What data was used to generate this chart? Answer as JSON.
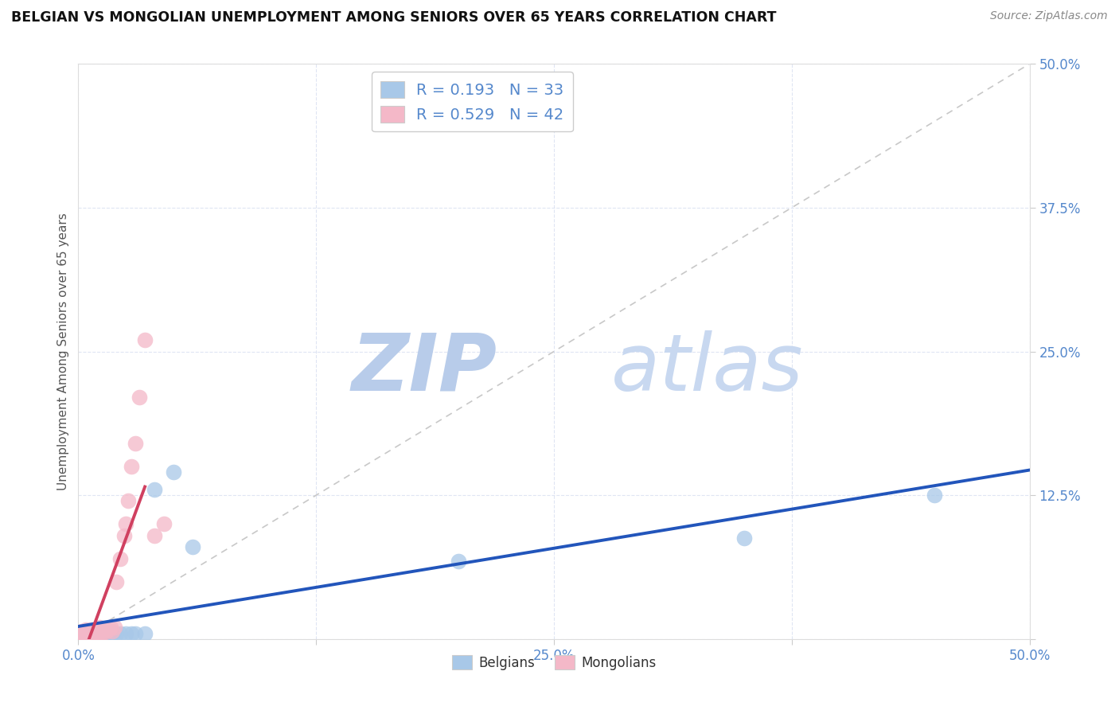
{
  "title": "BELGIAN VS MONGOLIAN UNEMPLOYMENT AMONG SENIORS OVER 65 YEARS CORRELATION CHART",
  "source": "Source: ZipAtlas.com",
  "ylabel": "Unemployment Among Seniors over 65 years",
  "xlim": [
    0.0,
    0.5
  ],
  "ylim": [
    0.0,
    0.5
  ],
  "xticks": [
    0.0,
    0.125,
    0.25,
    0.375,
    0.5
  ],
  "yticks": [
    0.0,
    0.125,
    0.25,
    0.375,
    0.5
  ],
  "xticklabels": [
    "0.0%",
    "",
    "25.0%",
    "",
    "50.0%"
  ],
  "yticklabels": [
    "",
    "12.5%",
    "25.0%",
    "37.5%",
    "50.0%"
  ],
  "legend_r_belgian": "R = 0.193",
  "legend_n_belgian": "N = 33",
  "legend_r_mongolian": "R = 0.529",
  "legend_n_mongolian": "N = 42",
  "belgian_color": "#A8C8E8",
  "mongolian_color": "#F4B8C8",
  "belgian_line_color": "#2255BB",
  "mongolian_line_color": "#D04060",
  "diagonal_color": "#C8C8C8",
  "watermark_zip": "ZIP",
  "watermark_atlas": "atlas",
  "watermark_color_zip": "#B8CCEA",
  "watermark_color_atlas": "#C8D8F0",
  "tick_color": "#5588CC",
  "grid_color": "#D8DFF0",
  "belgians_x": [
    0.001,
    0.001,
    0.002,
    0.003,
    0.004,
    0.005,
    0.006,
    0.007,
    0.008,
    0.009,
    0.01,
    0.01,
    0.011,
    0.012,
    0.013,
    0.014,
    0.015,
    0.015,
    0.016,
    0.017,
    0.018,
    0.02,
    0.022,
    0.025,
    0.028,
    0.03,
    0.035,
    0.04,
    0.05,
    0.06,
    0.2,
    0.35,
    0.45
  ],
  "belgians_y": [
    0.005,
    0.005,
    0.005,
    0.005,
    0.005,
    0.005,
    0.005,
    0.005,
    0.005,
    0.005,
    0.005,
    0.005,
    0.005,
    0.005,
    0.005,
    0.005,
    0.005,
    0.005,
    0.005,
    0.005,
    0.005,
    0.005,
    0.005,
    0.005,
    0.005,
    0.005,
    0.005,
    0.13,
    0.145,
    0.08,
    0.068,
    0.088,
    0.125
  ],
  "mongolians_x": [
    0.001,
    0.001,
    0.002,
    0.002,
    0.003,
    0.003,
    0.004,
    0.004,
    0.005,
    0.005,
    0.006,
    0.006,
    0.007,
    0.007,
    0.008,
    0.008,
    0.009,
    0.009,
    0.01,
    0.01,
    0.011,
    0.011,
    0.012,
    0.012,
    0.013,
    0.014,
    0.015,
    0.016,
    0.017,
    0.018,
    0.019,
    0.02,
    0.022,
    0.024,
    0.025,
    0.026,
    0.028,
    0.03,
    0.032,
    0.035,
    0.04,
    0.045
  ],
  "mongolians_y": [
    0.005,
    0.006,
    0.005,
    0.007,
    0.005,
    0.006,
    0.005,
    0.008,
    0.005,
    0.007,
    0.005,
    0.006,
    0.005,
    0.008,
    0.005,
    0.007,
    0.006,
    0.009,
    0.005,
    0.008,
    0.006,
    0.01,
    0.005,
    0.008,
    0.007,
    0.006,
    0.009,
    0.008,
    0.01,
    0.007,
    0.01,
    0.05,
    0.07,
    0.09,
    0.1,
    0.12,
    0.15,
    0.17,
    0.21,
    0.26,
    0.09,
    0.1
  ]
}
